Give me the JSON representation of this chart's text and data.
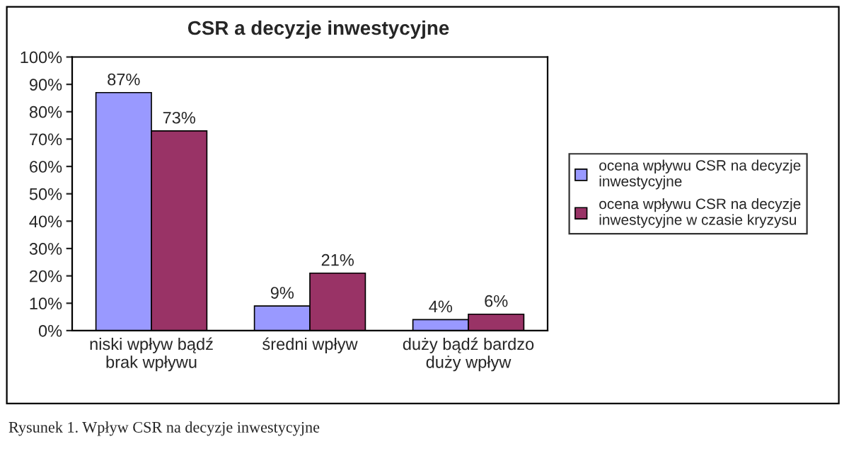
{
  "chart_data": {
    "type": "bar",
    "title": "CSR a decyzje inwestycyjne",
    "categories": [
      "niski wpływ bądź\nbrak wpływu",
      "średni wpływ",
      "duży bądź bardzo\nduży wpływ"
    ],
    "series": [
      {
        "name": "ocena wpływu CSR na decyzje\ninwestycyjne",
        "color": "#9999ff",
        "values": [
          87,
          9,
          4
        ],
        "value_labels": [
          "87%",
          "9%",
          "4%"
        ]
      },
      {
        "name": "ocena wpływu CSR na decyzje\ninwestycyjne w czasie kryzysu",
        "color": "#993366",
        "values": [
          73,
          21,
          6
        ],
        "value_labels": [
          "73%",
          "21%",
          "6%"
        ]
      }
    ],
    "ylim": [
      0,
      100
    ],
    "yticks": [
      {
        "value": 0,
        "label": "0%"
      },
      {
        "value": 10,
        "label": "10%"
      },
      {
        "value": 20,
        "label": "20%"
      },
      {
        "value": 30,
        "label": "30%"
      },
      {
        "value": 40,
        "label": "40%"
      },
      {
        "value": 50,
        "label": "50%"
      },
      {
        "value": 60,
        "label": "60%"
      },
      {
        "value": 70,
        "label": "70%"
      },
      {
        "value": 80,
        "label": "80%"
      },
      {
        "value": 90,
        "label": "90%"
      },
      {
        "value": 100,
        "label": "100%"
      }
    ],
    "legend": "right",
    "annotations": [
      "Rysunek 1. Wpływ CSR na decyzje inwestycyjne"
    ]
  }
}
